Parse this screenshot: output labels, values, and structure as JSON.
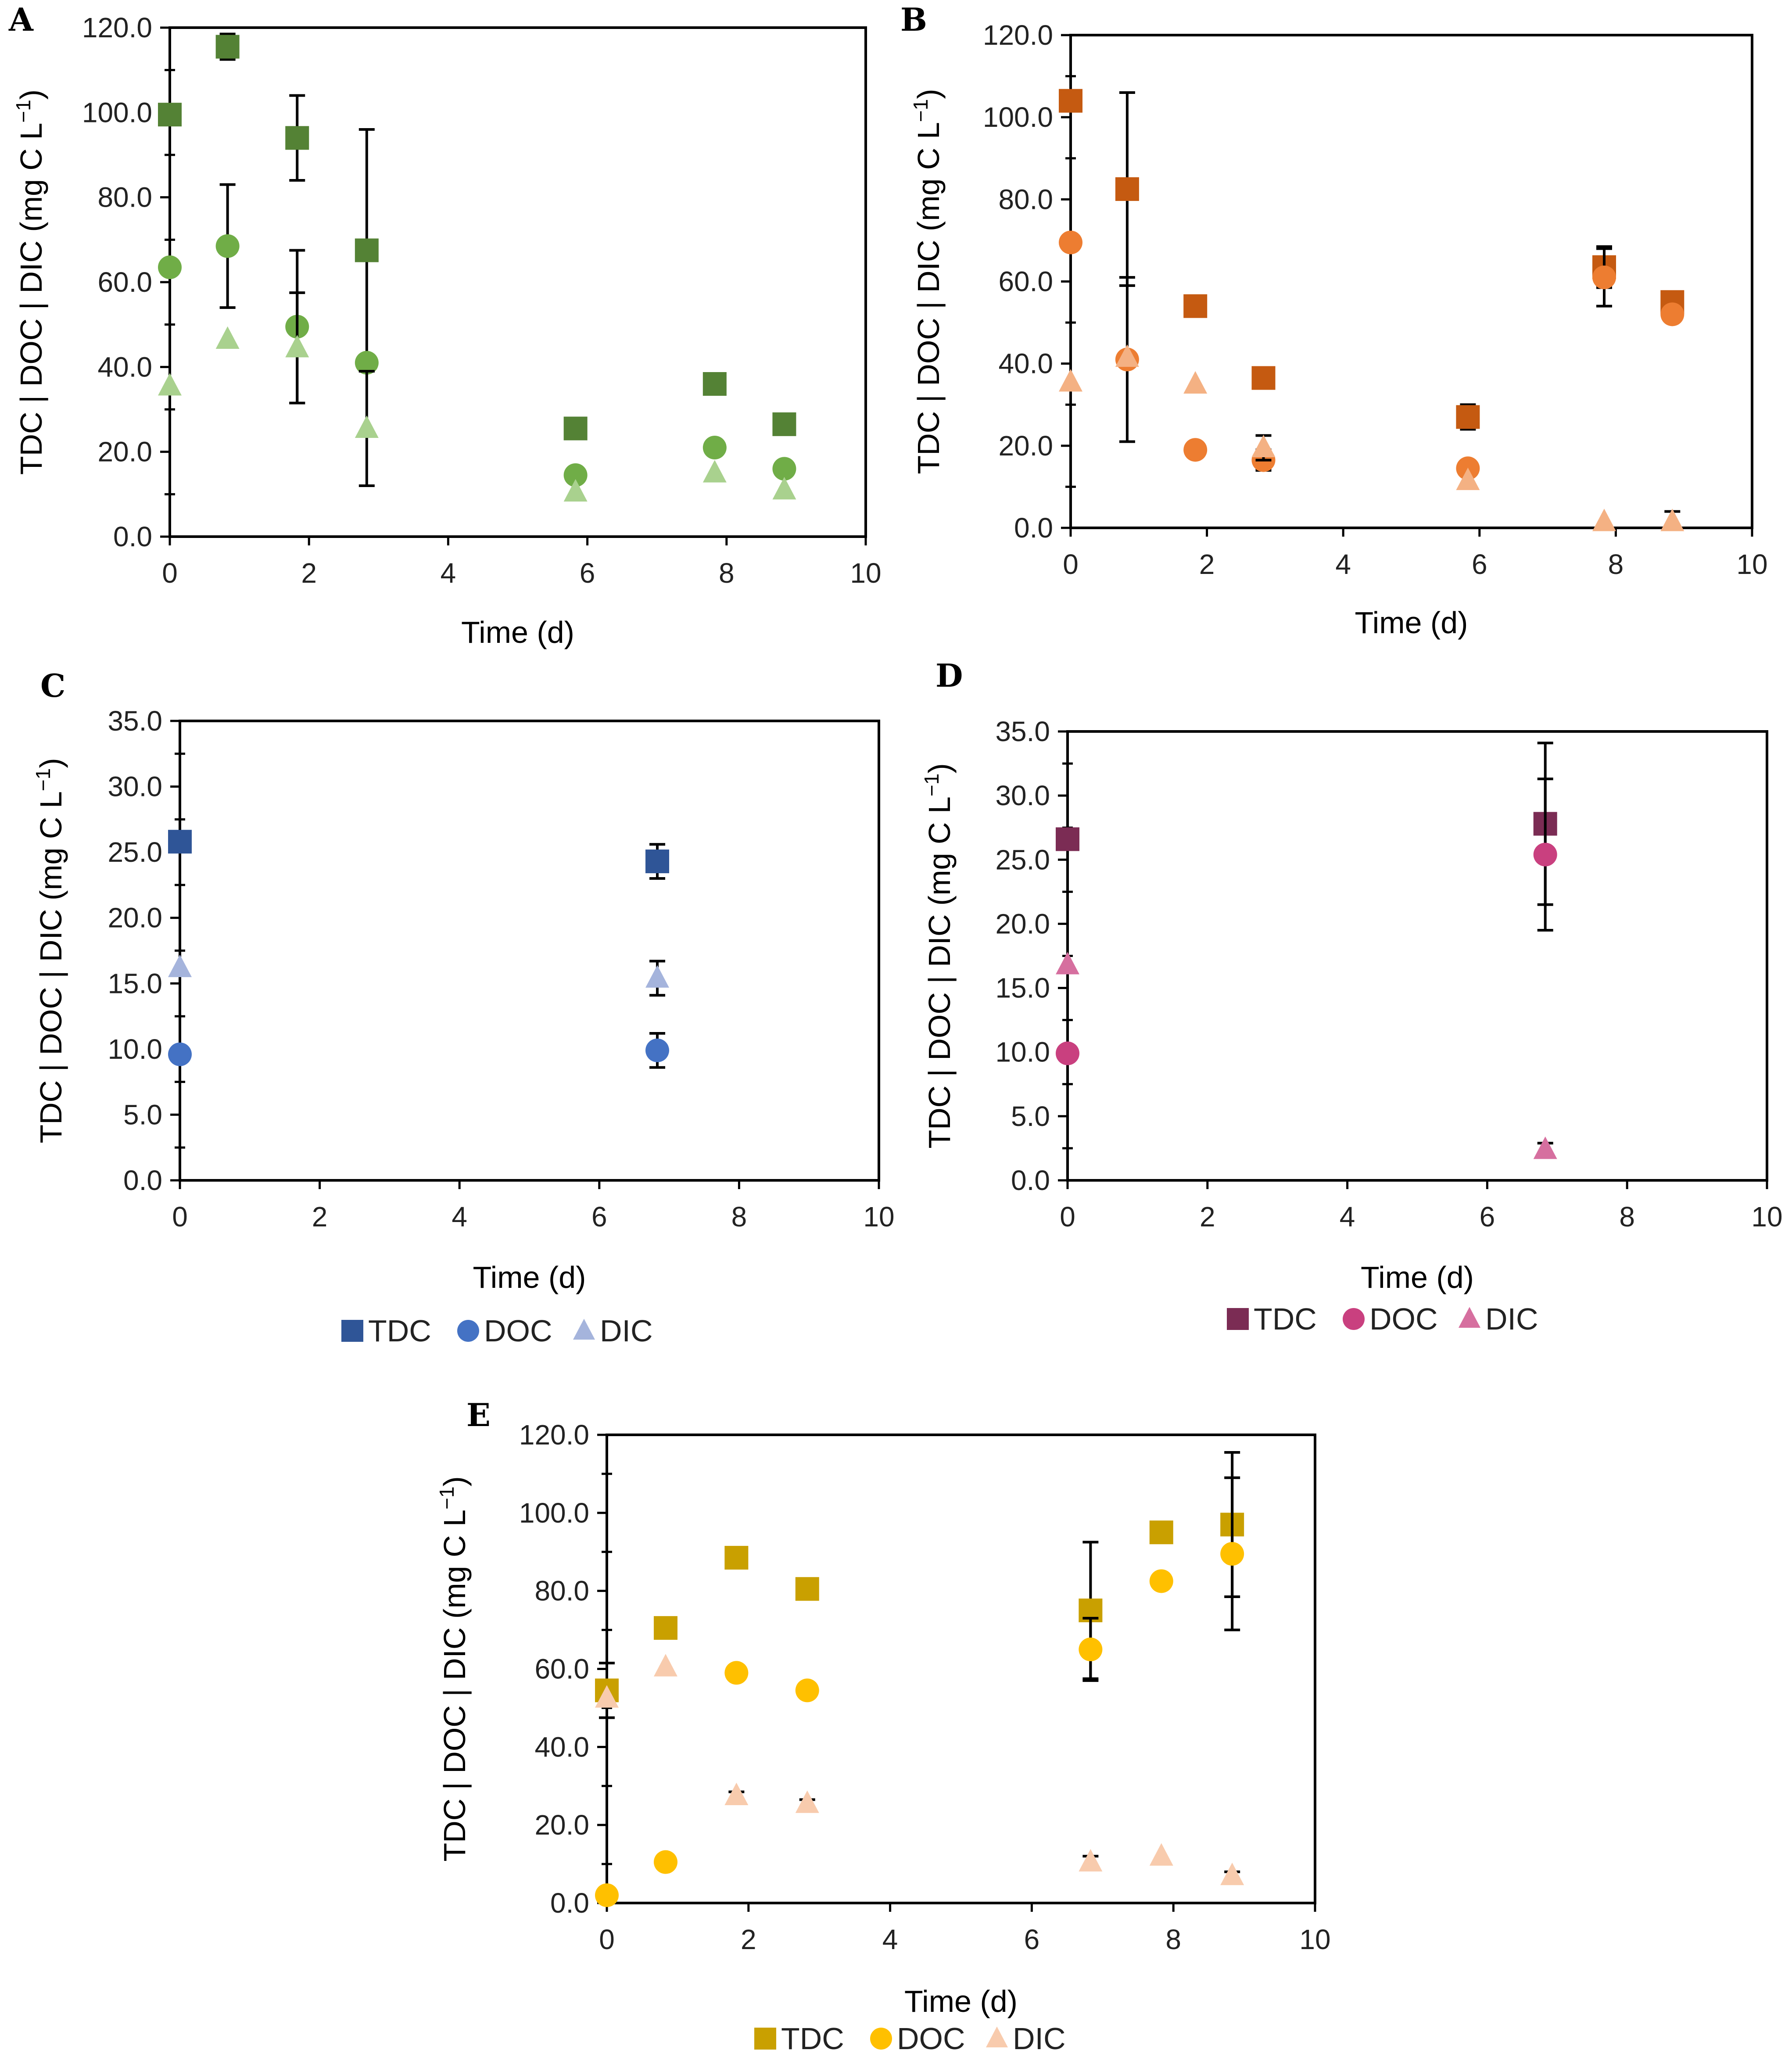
{
  "chart_data": [
    {
      "panel": "A",
      "type": "scatter",
      "xlabel": "Time (d)",
      "ylabel_parts": [
        "TDC | DOC | DIC (mg C L",
        "−1",
        ")"
      ],
      "xlim": [
        0,
        10
      ],
      "ylim": [
        0,
        120
      ],
      "xticks": [
        "0",
        "2",
        "4",
        "6",
        "8",
        "10"
      ],
      "yticks": [
        "0.0",
        "20.0",
        "40.0",
        "60.0",
        "80.0",
        "100.0",
        "120.0"
      ],
      "legend_visible": false,
      "series": [
        {
          "name": "TDC",
          "marker": "square",
          "color": "#548235",
          "x": [
            0,
            0.83,
            1.83,
            2.83,
            5.83,
            7.83,
            8.83
          ],
          "y": [
            99.5,
            115.5,
            94,
            67.5,
            25.5,
            36,
            26.5
          ],
          "err": [
            0,
            3,
            10,
            28.5,
            0,
            0,
            0
          ]
        },
        {
          "name": "DOC",
          "marker": "circle",
          "color": "#70AD47",
          "x": [
            0,
            0.83,
            1.83,
            2.83,
            5.83,
            7.83,
            8.83
          ],
          "y": [
            63.5,
            68.5,
            49.5,
            41,
            14.5,
            21,
            16
          ],
          "err": [
            0,
            14.5,
            18,
            0,
            0,
            0,
            0
          ]
        },
        {
          "name": "DIC",
          "marker": "triangle",
          "color": "#A9D18E",
          "x": [
            0,
            0.83,
            1.83,
            2.83,
            5.83,
            7.83,
            8.83
          ],
          "y": [
            35.5,
            46.5,
            44.5,
            25.5,
            10.5,
            15,
            11
          ],
          "err": [
            0,
            0,
            13,
            13.5,
            0,
            0,
            0
          ]
        }
      ]
    },
    {
      "panel": "B",
      "type": "scatter",
      "xlabel": "Time (d)",
      "ylabel_parts": [
        "TDC | DOC | DIC (mg C L",
        "−1",
        ")"
      ],
      "xlim": [
        0,
        10
      ],
      "ylim": [
        0,
        120
      ],
      "xticks": [
        "0",
        "2",
        "4",
        "6",
        "8",
        "10"
      ],
      "yticks": [
        "0.0",
        "20.0",
        "40.0",
        "60.0",
        "80.0",
        "100.0",
        "120.0"
      ],
      "legend_visible": false,
      "series": [
        {
          "name": "TDC",
          "marker": "square",
          "color": "#C55A11",
          "x": [
            0,
            0.83,
            1.83,
            2.83,
            5.83,
            7.83,
            8.83
          ],
          "y": [
            104,
            82.5,
            54,
            36.5,
            27,
            63.5,
            55
          ],
          "err": [
            0,
            23.5,
            0,
            0,
            3,
            5,
            0
          ]
        },
        {
          "name": "DOC",
          "marker": "circle",
          "color": "#ED7D31",
          "x": [
            0,
            0.83,
            1.83,
            2.83,
            5.83,
            7.83,
            8.83
          ],
          "y": [
            69.5,
            41,
            19,
            16.5,
            14.5,
            61,
            52
          ],
          "err": [
            0,
            20,
            0,
            2.5,
            0,
            7,
            0
          ]
        },
        {
          "name": "DIC",
          "marker": "triangle",
          "color": "#F4B183",
          "x": [
            0,
            0.83,
            1.83,
            2.83,
            5.83,
            7.83,
            8.83
          ],
          "y": [
            35.5,
            41.5,
            35,
            19.5,
            11.5,
            1.5,
            1.5
          ],
          "err": [
            0,
            0,
            0,
            3,
            0,
            0,
            2.5
          ]
        }
      ]
    },
    {
      "panel": "C",
      "type": "scatter",
      "xlabel": "Time (d)",
      "ylabel_parts": [
        "TDC | DOC | DIC (mg C L",
        "−1",
        ")"
      ],
      "xlim": [
        0,
        10
      ],
      "ylim": [
        0,
        35
      ],
      "xticks": [
        "0",
        "2",
        "4",
        "6",
        "8",
        "10"
      ],
      "yticks": [
        "0.0",
        "5.0",
        "10.0",
        "15.0",
        "20.0",
        "25.0",
        "30.0",
        "35.0"
      ],
      "legend_visible": true,
      "legend_labels": [
        "TDC",
        "DOC",
        "DIC"
      ],
      "series": [
        {
          "name": "TDC",
          "marker": "square",
          "color": "#2F5597",
          "x": [
            0,
            6.83
          ],
          "y": [
            25.8,
            24.3
          ],
          "err": [
            0,
            1.3
          ]
        },
        {
          "name": "DOC",
          "marker": "circle",
          "color": "#4472C4",
          "x": [
            0,
            6.83
          ],
          "y": [
            9.6,
            9.9
          ],
          "err": [
            0,
            1.3
          ]
        },
        {
          "name": "DIC",
          "marker": "triangle",
          "color": "#A5B4DC",
          "x": [
            0,
            6.83
          ],
          "y": [
            16.2,
            15.4
          ],
          "err": [
            0,
            1.3
          ]
        }
      ]
    },
    {
      "panel": "D",
      "type": "scatter",
      "xlabel": "Time (d)",
      "ylabel_parts": [
        "TDC | DOC | DIC (mg C L",
        "−1",
        ")"
      ],
      "xlim": [
        0,
        10
      ],
      "ylim": [
        0,
        35
      ],
      "xticks": [
        "0",
        "2",
        "4",
        "6",
        "8",
        "10"
      ],
      "yticks": [
        "0.0",
        "5.0",
        "10.0",
        "15.0",
        "20.0",
        "25.0",
        "30.0",
        "35.0"
      ],
      "legend_visible": true,
      "legend_labels": [
        "TDC",
        "DOC",
        "DIC"
      ],
      "series": [
        {
          "name": "TDC",
          "marker": "square",
          "color": "#7B2C54",
          "x": [
            0,
            6.83
          ],
          "y": [
            26.6,
            27.8
          ],
          "err": [
            0,
            6.3
          ]
        },
        {
          "name": "DOC",
          "marker": "circle",
          "color": "#C9407F",
          "x": [
            0,
            6.83
          ],
          "y": [
            9.9,
            25.4
          ],
          "err": [
            0,
            5.9
          ]
        },
        {
          "name": "DIC",
          "marker": "triangle",
          "color": "#D66F9F",
          "x": [
            0,
            6.83
          ],
          "y": [
            16.8,
            2.4
          ],
          "err": [
            0,
            0.5
          ]
        }
      ]
    },
    {
      "panel": "E",
      "type": "scatter",
      "xlabel": "Time (d)",
      "ylabel_parts": [
        "TDC | DOC | DIC (mg C L",
        "−1",
        ")"
      ],
      "xlim": [
        0,
        10
      ],
      "ylim": [
        0,
        120
      ],
      "xticks": [
        "0",
        "2",
        "4",
        "6",
        "8",
        "10"
      ],
      "yticks": [
        "0.0",
        "20.0",
        "40.0",
        "60.0",
        "80.0",
        "100.0",
        "120.0"
      ],
      "legend_visible": true,
      "legend_labels": [
        "TDC",
        "DOC",
        "DIC"
      ],
      "series": [
        {
          "name": "TDC",
          "marker": "square",
          "color": "#C9A000",
          "x": [
            0,
            0.83,
            1.83,
            2.83,
            6.83,
            7.83,
            8.83
          ],
          "y": [
            54.5,
            70.5,
            88.5,
            80.5,
            75,
            95,
            97
          ],
          "err": [
            7,
            0,
            0,
            0,
            17.5,
            0,
            18.5
          ]
        },
        {
          "name": "DOC",
          "marker": "circle",
          "color": "#FFC000",
          "x": [
            0,
            0.83,
            1.83,
            2.83,
            6.83,
            7.83,
            8.83
          ],
          "y": [
            2,
            10.5,
            59,
            54.5,
            65,
            82.5,
            89.5
          ],
          "err": [
            0,
            0,
            0,
            0,
            8,
            0,
            19.5
          ]
        },
        {
          "name": "DIC",
          "marker": "triangle",
          "color": "#F8CBAD",
          "x": [
            0,
            0.83,
            1.83,
            2.83,
            6.83,
            7.83,
            8.83
          ],
          "y": [
            52.5,
            60.5,
            27.5,
            25.5,
            10.5,
            12,
            7
          ],
          "err": [
            0,
            0,
            1,
            1,
            1.5,
            0,
            1
          ]
        }
      ]
    }
  ]
}
